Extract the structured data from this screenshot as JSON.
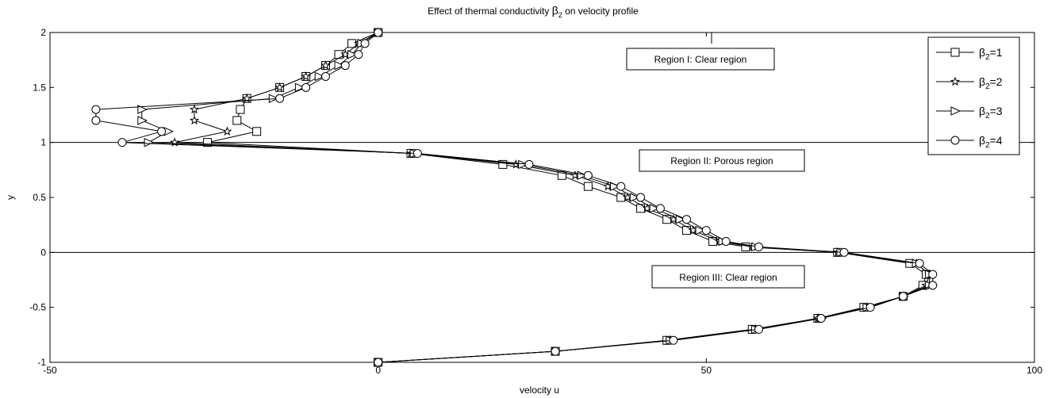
{
  "chart_data": {
    "type": "line",
    "title_prefix": "Effect of thermal conductivity ",
    "title_symbol": "β",
    "title_sub": "2",
    "title_suffix": " on velocity profile",
    "xlabel": "velocity u",
    "ylabel": "y",
    "xlim": [
      -50,
      100
    ],
    "ylim": [
      -1,
      2
    ],
    "xticks": [
      "-50",
      "0",
      "50",
      "100"
    ],
    "yticks": [
      "-1",
      "-0.5",
      "0",
      "0.5",
      "1",
      "1.5",
      "2"
    ],
    "grid": false,
    "legend_position": "top-right",
    "reference_lines_y": [
      0,
      1
    ],
    "annotations": [
      "Region I: Clear region",
      "Region II: Porous region",
      "Region III: Clear region"
    ],
    "series": [
      {
        "name": "β2=1",
        "legend_symbol": "β",
        "legend_sub": "2",
        "legend_value": "=1",
        "marker": "square",
        "points": [
          [
            0,
            2
          ],
          [
            -4,
            1.9
          ],
          [
            -6,
            1.8
          ],
          [
            -8,
            1.7
          ],
          [
            -11,
            1.6
          ],
          [
            -15,
            1.5
          ],
          [
            -20,
            1.4
          ],
          [
            -21,
            1.3
          ],
          [
            -21.5,
            1.2
          ],
          [
            -18.5,
            1.1
          ],
          [
            -26,
            1.0
          ],
          [
            5,
            0.9
          ],
          [
            19,
            0.8
          ],
          [
            28,
            0.7
          ],
          [
            32,
            0.6
          ],
          [
            37,
            0.5
          ],
          [
            40,
            0.4
          ],
          [
            44,
            0.3
          ],
          [
            47,
            0.2
          ],
          [
            51,
            0.1
          ],
          [
            56,
            0.05
          ],
          [
            70,
            0
          ],
          [
            81,
            -0.1
          ],
          [
            83.5,
            -0.2
          ],
          [
            83,
            -0.3
          ],
          [
            80,
            -0.4
          ],
          [
            74,
            -0.5
          ],
          [
            67,
            -0.6
          ],
          [
            57,
            -0.7
          ],
          [
            44,
            -0.8
          ],
          [
            27,
            -0.9
          ],
          [
            0,
            -1
          ]
        ]
      },
      {
        "name": "β2=2",
        "legend_symbol": "β",
        "legend_sub": "2",
        "legend_value": "=2",
        "marker": "star",
        "points": [
          [
            0,
            2
          ],
          [
            -3,
            1.9
          ],
          [
            -5,
            1.8
          ],
          [
            -8,
            1.7
          ],
          [
            -11,
            1.6
          ],
          [
            -15,
            1.5
          ],
          [
            -20,
            1.4
          ],
          [
            -28,
            1.3
          ],
          [
            -28,
            1.2
          ],
          [
            -23,
            1.1
          ],
          [
            -31,
            1.0
          ],
          [
            5,
            0.9
          ],
          [
            21,
            0.8
          ],
          [
            30,
            0.7
          ],
          [
            35,
            0.6
          ],
          [
            38,
            0.5
          ],
          [
            41,
            0.4
          ],
          [
            45,
            0.3
          ],
          [
            48,
            0.2
          ],
          [
            52,
            0.1
          ],
          [
            57,
            0.05
          ],
          [
            70,
            0
          ],
          [
            82,
            -0.1
          ],
          [
            84,
            -0.2
          ],
          [
            83.5,
            -0.3
          ],
          [
            80,
            -0.4
          ],
          [
            74.5,
            -0.5
          ],
          [
            67,
            -0.6
          ],
          [
            57.5,
            -0.7
          ],
          [
            44.5,
            -0.8
          ],
          [
            27,
            -0.9
          ],
          [
            0,
            -1
          ]
        ]
      },
      {
        "name": "β2=3",
        "legend_symbol": "β",
        "legend_sub": "2",
        "legend_value": "=3",
        "marker": "triangle-right",
        "points": [
          [
            0,
            2
          ],
          [
            -2.5,
            1.9
          ],
          [
            -4,
            1.8
          ],
          [
            -6,
            1.7
          ],
          [
            -9,
            1.6
          ],
          [
            -12,
            1.5
          ],
          [
            -16,
            1.4
          ],
          [
            -36,
            1.3
          ],
          [
            -36,
            1.2
          ],
          [
            -32,
            1.1
          ],
          [
            -35,
            1.0
          ],
          [
            5.5,
            0.9
          ],
          [
            22,
            0.8
          ],
          [
            31,
            0.7
          ],
          [
            36,
            0.6
          ],
          [
            39,
            0.5
          ],
          [
            42,
            0.4
          ],
          [
            46,
            0.3
          ],
          [
            49,
            0.2
          ],
          [
            52.5,
            0.1
          ],
          [
            57.5,
            0.05
          ],
          [
            70.5,
            0
          ],
          [
            82,
            -0.1
          ],
          [
            84,
            -0.2
          ],
          [
            84,
            -0.3
          ],
          [
            80,
            -0.4
          ],
          [
            74.5,
            -0.5
          ],
          [
            67.5,
            -0.6
          ],
          [
            57.5,
            -0.7
          ],
          [
            44.5,
            -0.8
          ],
          [
            27,
            -0.9
          ],
          [
            0,
            -1
          ]
        ]
      },
      {
        "name": "β2=4",
        "legend_symbol": "β",
        "legend_sub": "2",
        "legend_value": "=4",
        "marker": "circle",
        "points": [
          [
            0,
            2
          ],
          [
            -2,
            1.9
          ],
          [
            -3,
            1.8
          ],
          [
            -5,
            1.7
          ],
          [
            -8,
            1.6
          ],
          [
            -11,
            1.5
          ],
          [
            -15,
            1.4
          ],
          [
            -43,
            1.3
          ],
          [
            -43,
            1.2
          ],
          [
            -33,
            1.1
          ],
          [
            -39,
            1.0
          ],
          [
            6,
            0.9
          ],
          [
            23,
            0.8
          ],
          [
            32,
            0.7
          ],
          [
            37,
            0.6
          ],
          [
            40,
            0.5
          ],
          [
            43,
            0.4
          ],
          [
            47,
            0.3
          ],
          [
            50,
            0.2
          ],
          [
            53,
            0.1
          ],
          [
            58,
            0.05
          ],
          [
            71,
            0
          ],
          [
            82.5,
            -0.1
          ],
          [
            84.5,
            -0.2
          ],
          [
            84.5,
            -0.3
          ],
          [
            80,
            -0.4
          ],
          [
            75,
            -0.5
          ],
          [
            67.5,
            -0.6
          ],
          [
            58,
            -0.7
          ],
          [
            45,
            -0.8
          ],
          [
            27,
            -0.9
          ],
          [
            0,
            -1
          ]
        ]
      }
    ]
  }
}
